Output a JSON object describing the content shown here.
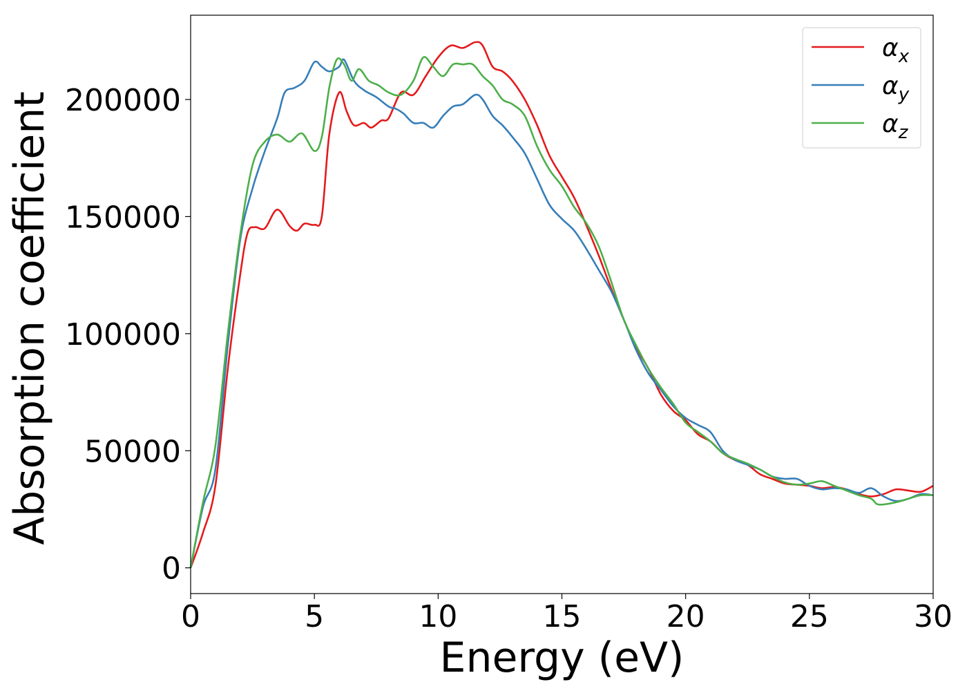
{
  "chart_data": {
    "type": "line",
    "title": "",
    "xlabel": "Energy (eV)",
    "ylabel": "Absorption coefficient",
    "xlim": [
      0,
      30
    ],
    "ylim": [
      -11000,
      236000
    ],
    "xticks": [
      0,
      5,
      10,
      15,
      20,
      25,
      30
    ],
    "yticks": [
      0,
      50000,
      100000,
      150000,
      200000
    ],
    "grid": false,
    "legend_position": "top-right",
    "series": [
      {
        "name": "α_x",
        "name_base": "α",
        "name_sub": "x",
        "color": "#e41a1c",
        "points": [
          [
            0,
            0
          ],
          [
            0.5,
            15000
          ],
          [
            1.0,
            35000
          ],
          [
            1.5,
            85000
          ],
          [
            2.0,
            125000
          ],
          [
            2.3,
            143000
          ],
          [
            2.6,
            145500
          ],
          [
            3.0,
            145000
          ],
          [
            3.5,
            153000
          ],
          [
            4.0,
            146000
          ],
          [
            4.3,
            144000
          ],
          [
            4.6,
            147000
          ],
          [
            5.0,
            146500
          ],
          [
            5.3,
            150000
          ],
          [
            5.6,
            185000
          ],
          [
            6.0,
            203000
          ],
          [
            6.3,
            195000
          ],
          [
            6.6,
            189000
          ],
          [
            7.0,
            190000
          ],
          [
            7.3,
            188000
          ],
          [
            7.7,
            191000
          ],
          [
            8.0,
            192000
          ],
          [
            8.5,
            203000
          ],
          [
            9.0,
            202000
          ],
          [
            9.5,
            210000
          ],
          [
            10.0,
            218000
          ],
          [
            10.5,
            223000
          ],
          [
            11.0,
            222000
          ],
          [
            11.5,
            224500
          ],
          [
            11.8,
            223000
          ],
          [
            12.2,
            214000
          ],
          [
            12.6,
            212000
          ],
          [
            13.0,
            208000
          ],
          [
            13.5,
            200000
          ],
          [
            14.0,
            189000
          ],
          [
            14.5,
            176000
          ],
          [
            15.0,
            167000
          ],
          [
            15.5,
            158000
          ],
          [
            16.0,
            146000
          ],
          [
            16.5,
            133000
          ],
          [
            17.0,
            119000
          ],
          [
            17.5,
            106000
          ],
          [
            18.0,
            94000
          ],
          [
            18.5,
            85000
          ],
          [
            19.0,
            74000
          ],
          [
            19.5,
            67000
          ],
          [
            20.0,
            63000
          ],
          [
            20.5,
            57000
          ],
          [
            21.0,
            54000
          ],
          [
            21.5,
            49000
          ],
          [
            22.0,
            46000
          ],
          [
            22.5,
            44000
          ],
          [
            23.0,
            40000
          ],
          [
            23.5,
            38000
          ],
          [
            24.0,
            36000
          ],
          [
            24.5,
            35500
          ],
          [
            25.0,
            35000
          ],
          [
            25.5,
            34000
          ],
          [
            26.0,
            34500
          ],
          [
            26.5,
            33500
          ],
          [
            27.0,
            31500
          ],
          [
            27.5,
            30500
          ],
          [
            28.0,
            31500
          ],
          [
            28.5,
            33500
          ],
          [
            29.0,
            33000
          ],
          [
            29.5,
            32500
          ],
          [
            30.0,
            35000
          ]
        ]
      },
      {
        "name": "α_y",
        "name_base": "α",
        "name_sub": "y",
        "color": "#377eb8",
        "points": [
          [
            0,
            0
          ],
          [
            0.5,
            26000
          ],
          [
            1.0,
            42000
          ],
          [
            1.5,
            95000
          ],
          [
            2.0,
            140000
          ],
          [
            2.5,
            162000
          ],
          [
            3.0,
            178000
          ],
          [
            3.5,
            192000
          ],
          [
            3.8,
            203000
          ],
          [
            4.2,
            205000
          ],
          [
            4.6,
            208000
          ],
          [
            5.0,
            216000
          ],
          [
            5.3,
            214000
          ],
          [
            5.6,
            212000
          ],
          [
            6.0,
            214000
          ],
          [
            6.2,
            217000
          ],
          [
            6.6,
            208000
          ],
          [
            7.0,
            204000
          ],
          [
            7.5,
            201000
          ],
          [
            8.0,
            197000
          ],
          [
            8.3,
            196000
          ],
          [
            8.6,
            194000
          ],
          [
            9.0,
            190000
          ],
          [
            9.4,
            190000
          ],
          [
            9.8,
            188000
          ],
          [
            10.2,
            193000
          ],
          [
            10.6,
            197000
          ],
          [
            11.0,
            198000
          ],
          [
            11.5,
            202000
          ],
          [
            11.8,
            200000
          ],
          [
            12.2,
            193000
          ],
          [
            12.6,
            189000
          ],
          [
            13.0,
            184000
          ],
          [
            13.5,
            177000
          ],
          [
            14.0,
            166000
          ],
          [
            14.5,
            155000
          ],
          [
            15.0,
            149000
          ],
          [
            15.5,
            144000
          ],
          [
            16.0,
            136000
          ],
          [
            16.5,
            127000
          ],
          [
            17.0,
            118000
          ],
          [
            17.5,
            106000
          ],
          [
            18.0,
            93000
          ],
          [
            18.5,
            83000
          ],
          [
            19.0,
            76000
          ],
          [
            19.5,
            69000
          ],
          [
            20.0,
            64000
          ],
          [
            20.5,
            61000
          ],
          [
            21.0,
            58000
          ],
          [
            21.5,
            50000
          ],
          [
            22.0,
            46000
          ],
          [
            22.5,
            44000
          ],
          [
            23.0,
            42000
          ],
          [
            23.5,
            39000
          ],
          [
            24.0,
            38000
          ],
          [
            24.5,
            38000
          ],
          [
            25.0,
            35000
          ],
          [
            25.5,
            33500
          ],
          [
            26.0,
            34000
          ],
          [
            26.5,
            33500
          ],
          [
            27.0,
            32000
          ],
          [
            27.5,
            34000
          ],
          [
            28.0,
            30500
          ],
          [
            28.5,
            28500
          ],
          [
            29.0,
            29500
          ],
          [
            29.5,
            31500
          ],
          [
            30.0,
            31000
          ]
        ]
      },
      {
        "name": "α_z",
        "name_base": "α",
        "name_sub": "z",
        "color": "#4daf4a",
        "points": [
          [
            0,
            0
          ],
          [
            0.5,
            28000
          ],
          [
            1.0,
            52000
          ],
          [
            1.5,
            100000
          ],
          [
            2.0,
            142000
          ],
          [
            2.5,
            172000
          ],
          [
            3.0,
            182000
          ],
          [
            3.5,
            185000
          ],
          [
            4.0,
            182000
          ],
          [
            4.5,
            185500
          ],
          [
            5.0,
            178000
          ],
          [
            5.3,
            184000
          ],
          [
            5.6,
            205000
          ],
          [
            5.9,
            217000
          ],
          [
            6.2,
            215000
          ],
          [
            6.5,
            208000
          ],
          [
            6.8,
            213000
          ],
          [
            7.2,
            208000
          ],
          [
            7.6,
            206000
          ],
          [
            8.0,
            203000
          ],
          [
            8.5,
            202000
          ],
          [
            9.0,
            208000
          ],
          [
            9.4,
            218000
          ],
          [
            9.8,
            214000
          ],
          [
            10.2,
            210000
          ],
          [
            10.6,
            215000
          ],
          [
            11.0,
            215000
          ],
          [
            11.4,
            215000
          ],
          [
            11.8,
            210000
          ],
          [
            12.2,
            206000
          ],
          [
            12.6,
            200000
          ],
          [
            13.0,
            198000
          ],
          [
            13.5,
            193000
          ],
          [
            14.0,
            180000
          ],
          [
            14.5,
            170000
          ],
          [
            15.0,
            163000
          ],
          [
            15.5,
            154000
          ],
          [
            16.0,
            147000
          ],
          [
            16.5,
            137000
          ],
          [
            17.0,
            122000
          ],
          [
            17.5,
            106000
          ],
          [
            18.0,
            95000
          ],
          [
            18.5,
            85000
          ],
          [
            19.0,
            77000
          ],
          [
            19.5,
            70000
          ],
          [
            20.0,
            62000
          ],
          [
            20.5,
            58000
          ],
          [
            21.0,
            54000
          ],
          [
            21.5,
            49000
          ],
          [
            22.0,
            46500
          ],
          [
            22.5,
            44500
          ],
          [
            23.0,
            42000
          ],
          [
            23.5,
            39000
          ],
          [
            24.0,
            36500
          ],
          [
            24.5,
            35500
          ],
          [
            25.0,
            36000
          ],
          [
            25.5,
            37000
          ],
          [
            26.0,
            35000
          ],
          [
            26.5,
            33000
          ],
          [
            27.0,
            31000
          ],
          [
            27.5,
            29500
          ],
          [
            27.8,
            27000
          ],
          [
            28.5,
            28000
          ],
          [
            29.0,
            29500
          ],
          [
            29.5,
            31000
          ],
          [
            30.0,
            31000
          ]
        ]
      }
    ]
  }
}
